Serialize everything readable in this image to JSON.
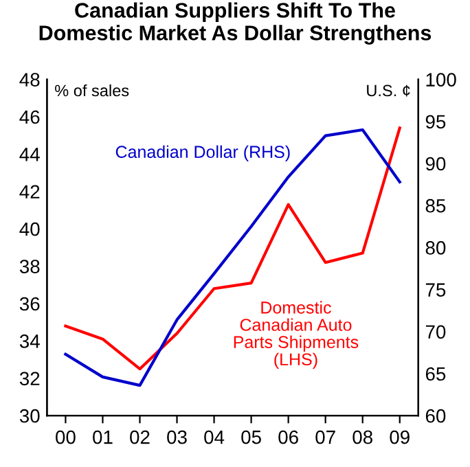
{
  "chart_data": {
    "type": "line",
    "title": "Canadian Suppliers Shift To The\nDomestic Market As Dollar Strengthens",
    "categories": [
      "00",
      "01",
      "02",
      "03",
      "04",
      "05",
      "06",
      "07",
      "08",
      "09"
    ],
    "series": [
      {
        "name": "Domestic\nCanadian Auto\nParts Shipments\n(LHS)",
        "color": "#ff0000",
        "values": [
          34.8,
          34.1,
          32.5,
          34.4,
          36.8,
          37.1,
          41.3,
          38.2,
          38.7,
          45.4
        ]
      },
      {
        "name": "Canadian Dollar (RHS)",
        "color": "#0000cc",
        "axis": "y2",
        "values": [
          67.3,
          64.6,
          63.6,
          71.4,
          76.9,
          82.5,
          88.4,
          93.3,
          94.0,
          87.8
        ]
      }
    ],
    "ylim": [
      30,
      48
    ],
    "yticks": [
      30,
      32,
      34,
      36,
      38,
      40,
      42,
      44,
      46,
      48
    ],
    "y2lim": [
      60,
      100
    ],
    "y2ticks": [
      60,
      65,
      70,
      75,
      80,
      85,
      90,
      95,
      100
    ],
    "ylabel": "% of sales",
    "y2label": "U.S. ¢",
    "grid": false,
    "legend": false,
    "marker": "none",
    "line_style": "solid"
  }
}
